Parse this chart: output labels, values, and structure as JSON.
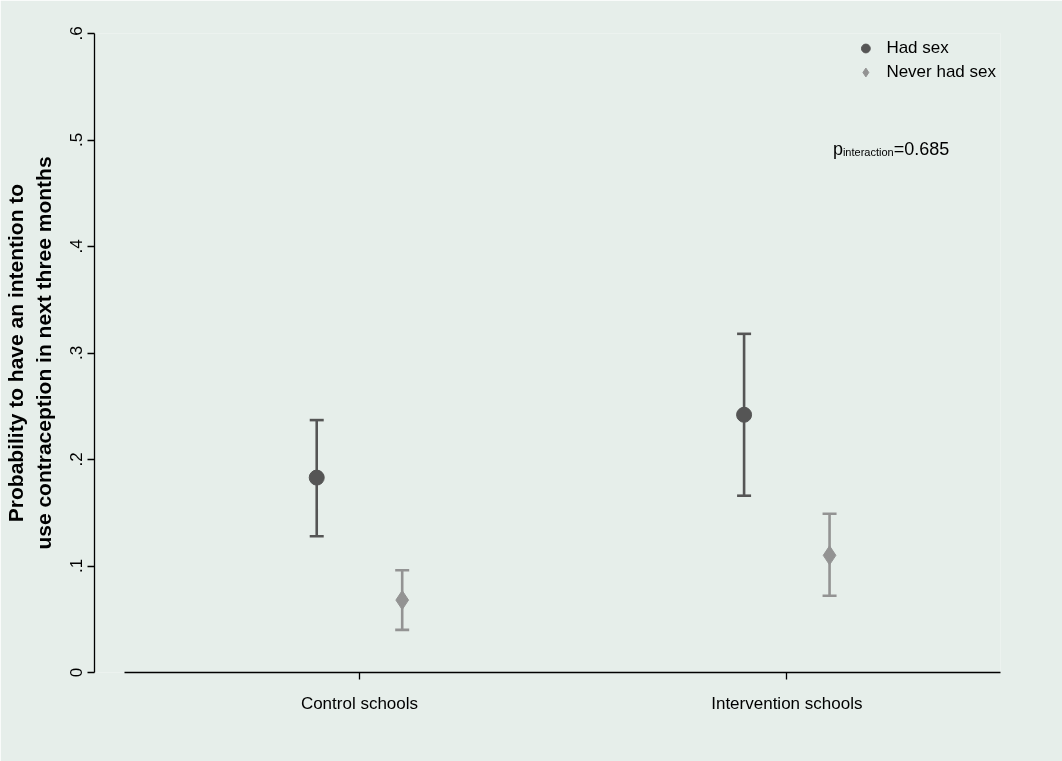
{
  "chart_data": {
    "type": "scatter",
    "ylabel": "Probability to have an intention to\nuse contraception in next three months",
    "categories": [
      "Control schools",
      "Intervention schools"
    ],
    "series": [
      {
        "name": "Had sex",
        "color": "#555555",
        "marker": "circle",
        "values": [
          0.183,
          0.242
        ],
        "errors": [
          [
            0.128,
            0.237
          ],
          [
            0.166,
            0.318
          ]
        ]
      },
      {
        "name": "Never had sex",
        "color": "#939393",
        "marker": "diamond",
        "values": [
          0.068,
          0.11
        ],
        "errors": [
          [
            0.04,
            0.096
          ],
          [
            0.072,
            0.149
          ]
        ]
      }
    ],
    "ylim": [
      0,
      0.6
    ],
    "yticks": [
      0,
      {
        "value": 0.1,
        "label": ".1"
      },
      {
        "value": 0.2,
        "label": ".2"
      },
      {
        "value": 0.3,
        "label": ".3"
      },
      {
        "value": 0.4,
        "label": ".4"
      },
      {
        "value": 0.5,
        "label": ".5"
      },
      {
        "value": 0.6,
        "label": ".6"
      }
    ],
    "legend": "top right",
    "annotations": [
      "p$_{interaction}$=0.685"
    ]
  }
}
